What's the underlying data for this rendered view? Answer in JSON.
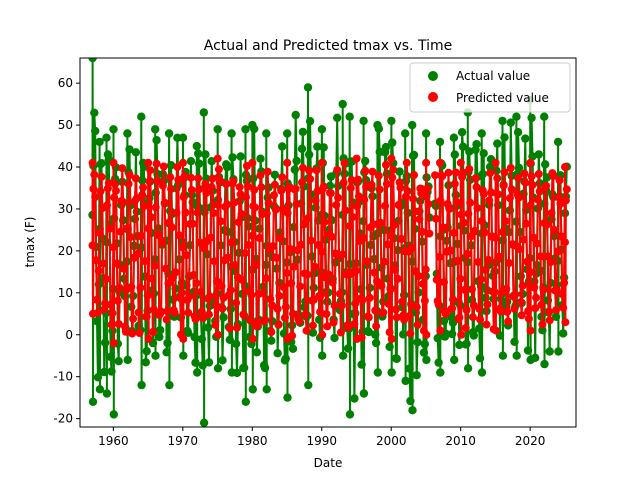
{
  "chart_data": {
    "type": "scatter",
    "title": "Actual and Predicted tmax vs. Time",
    "xlabel": "Date",
    "ylabel": "tmax (F)",
    "xlim": [
      1955.2,
      2026.6
    ],
    "ylim": [
      -22,
      66
    ],
    "xticks": [
      1960,
      1970,
      1980,
      1990,
      2000,
      2010,
      2020
    ],
    "yticks": [
      -20,
      -10,
      0,
      10,
      20,
      30,
      40,
      50,
      60
    ],
    "grid": false,
    "legend_position": "top-right",
    "colors": {
      "actual": "#008000",
      "predicted": "#ff0000"
    },
    "segments": [
      {
        "start": 1957.0,
        "end": 2005.5
      },
      {
        "start": 2006.3,
        "end": 2025.3
      }
    ],
    "series": [
      {
        "name": "Actual value",
        "color": "#008000",
        "envelope": [
          {
            "x": 1957,
            "min": -16,
            "max": 66
          },
          {
            "x": 1958,
            "min": -13,
            "max": 46
          },
          {
            "x": 1959,
            "min": -14,
            "max": 47
          },
          {
            "x": 1960,
            "min": -19,
            "max": 49
          },
          {
            "x": 1962,
            "min": -6,
            "max": 48
          },
          {
            "x": 1964,
            "min": -12,
            "max": 52
          },
          {
            "x": 1966,
            "min": -5,
            "max": 49
          },
          {
            "x": 1968,
            "min": -12,
            "max": 48
          },
          {
            "x": 1970,
            "min": -5,
            "max": 47
          },
          {
            "x": 1972,
            "min": -9,
            "max": 45
          },
          {
            "x": 1973,
            "min": -21,
            "max": 53
          },
          {
            "x": 1975,
            "min": -8,
            "max": 49
          },
          {
            "x": 1977,
            "min": -9,
            "max": 48
          },
          {
            "x": 1979,
            "min": -16,
            "max": 49
          },
          {
            "x": 1980,
            "min": -13,
            "max": 50
          },
          {
            "x": 1982,
            "min": -13,
            "max": 48
          },
          {
            "x": 1985,
            "min": -15,
            "max": 48
          },
          {
            "x": 1988,
            "min": -12,
            "max": 59
          },
          {
            "x": 1990,
            "min": -5,
            "max": 49
          },
          {
            "x": 1993,
            "min": -5,
            "max": 55
          },
          {
            "x": 1994,
            "min": -19,
            "max": 52
          },
          {
            "x": 1996,
            "min": -14,
            "max": 51
          },
          {
            "x": 1998,
            "min": -9,
            "max": 50
          },
          {
            "x": 2000,
            "min": -9,
            "max": 51
          },
          {
            "x": 2002,
            "min": -11,
            "max": 48
          },
          {
            "x": 2003,
            "min": -18,
            "max": 50
          },
          {
            "x": 2005,
            "min": -6,
            "max": 48
          },
          {
            "x": 2007,
            "min": -9,
            "max": 46
          },
          {
            "x": 2009,
            "min": -6,
            "max": 47
          },
          {
            "x": 2011,
            "min": -8,
            "max": 53
          },
          {
            "x": 2013,
            "min": -9,
            "max": 48
          },
          {
            "x": 2016,
            "min": -5,
            "max": 51
          },
          {
            "x": 2018,
            "min": -5,
            "max": 52
          },
          {
            "x": 2020,
            "min": -6,
            "max": 56
          },
          {
            "x": 2022,
            "min": -7,
            "max": 52
          },
          {
            "x": 2024,
            "min": -4,
            "max": 46
          }
        ]
      },
      {
        "name": "Predicted value",
        "color": "#ff0000",
        "envelope": [
          {
            "x": 1957,
            "min": 5,
            "max": 41
          },
          {
            "x": 1960,
            "min": -2,
            "max": 41
          },
          {
            "x": 1965,
            "min": -1,
            "max": 41
          },
          {
            "x": 1970,
            "min": -1,
            "max": 41
          },
          {
            "x": 1975,
            "min": 0,
            "max": 42
          },
          {
            "x": 1980,
            "min": -1,
            "max": 41
          },
          {
            "x": 1985,
            "min": -1,
            "max": 41
          },
          {
            "x": 1990,
            "min": 0,
            "max": 41
          },
          {
            "x": 1995,
            "min": -1,
            "max": 42
          },
          {
            "x": 2000,
            "min": -1,
            "max": 42
          },
          {
            "x": 2005,
            "min": 0,
            "max": 41
          },
          {
            "x": 2007,
            "min": 1,
            "max": 41
          },
          {
            "x": 2010,
            "min": 0,
            "max": 41
          },
          {
            "x": 2015,
            "min": 1,
            "max": 41
          },
          {
            "x": 2020,
            "min": 1,
            "max": 41
          },
          {
            "x": 2025,
            "min": 3,
            "max": 40
          }
        ]
      }
    ]
  }
}
